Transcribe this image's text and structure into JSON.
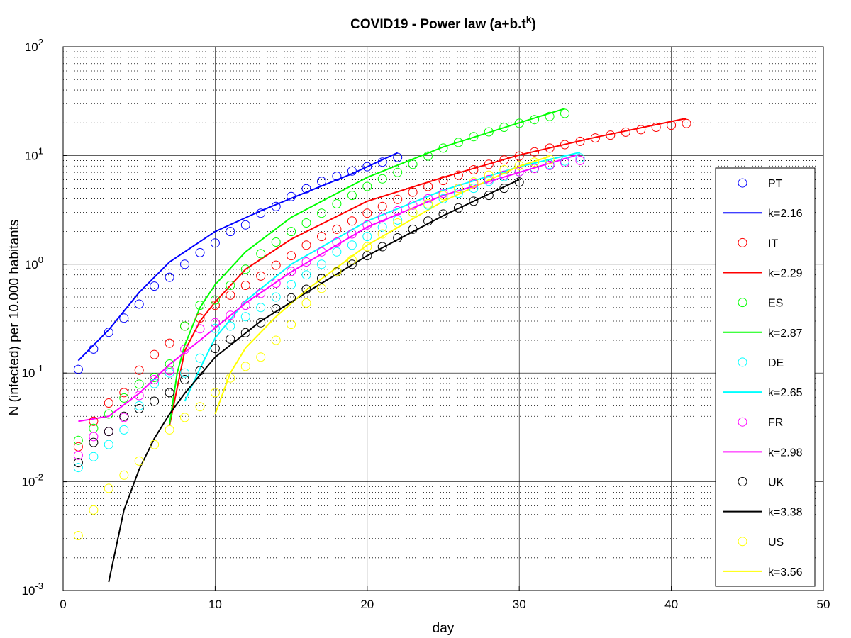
{
  "chart_data": {
    "type": "scatter",
    "title": "COVID19 - Power law (a+b.t",
    "title_sup": "k",
    "title_end": ")",
    "xlabel": "day",
    "ylabel": "N (infected) per 10.000 habitants",
    "xlim": [
      0,
      50
    ],
    "ylim": [
      0.001,
      100
    ],
    "yscale": "log",
    "grid": true,
    "minor_grid": true,
    "legend_position": "right",
    "x_ticks": [
      0,
      10,
      20,
      30,
      40,
      50
    ],
    "x_tick_labels": [
      "0",
      "10",
      "20",
      "30",
      "40",
      "50"
    ],
    "y_ticks": [
      0.001,
      0.01,
      0.1,
      1,
      10,
      100
    ],
    "y_tick_bases": [
      "10",
      "10",
      "10",
      "10",
      "10",
      "10"
    ],
    "y_tick_exps": [
      "-3",
      "-2",
      "-1",
      "0",
      "1",
      "2"
    ],
    "series": [
      {
        "name": "PT",
        "fit_label": "k=2.16",
        "color": "#0000ff",
        "k": 2.16,
        "points": [
          [
            1,
            0.108
          ],
          [
            2,
            0.166
          ],
          [
            3,
            0.237
          ],
          [
            4,
            0.32
          ],
          [
            5,
            0.43
          ],
          [
            6,
            0.63
          ],
          [
            7,
            0.76
          ],
          [
            8,
            1.0
          ],
          [
            9,
            1.28
          ],
          [
            10,
            1.57
          ],
          [
            11,
            2.0
          ],
          [
            12,
            2.3
          ],
          [
            13,
            2.95
          ],
          [
            14,
            3.4
          ],
          [
            15,
            4.2
          ],
          [
            16,
            4.95
          ],
          [
            17,
            5.8
          ],
          [
            18,
            6.45
          ],
          [
            19,
            7.2
          ],
          [
            20,
            7.9
          ],
          [
            21,
            8.7
          ],
          [
            22,
            9.6
          ]
        ]
      },
      {
        "name": "IT",
        "fit_label": "k=2.29",
        "color": "#ff0000",
        "k": 2.29,
        "points": [
          [
            1,
            0.021
          ],
          [
            2,
            0.036
          ],
          [
            3,
            0.053
          ],
          [
            4,
            0.066
          ],
          [
            5,
            0.106
          ],
          [
            6,
            0.148
          ],
          [
            7,
            0.188
          ],
          [
            8,
            0.27
          ],
          [
            9,
            0.32
          ],
          [
            10,
            0.42
          ],
          [
            11,
            0.52
          ],
          [
            12,
            0.64
          ],
          [
            13,
            0.78
          ],
          [
            14,
            0.98
          ],
          [
            15,
            1.2
          ],
          [
            16,
            1.5
          ],
          [
            17,
            1.8
          ],
          [
            18,
            2.1
          ],
          [
            19,
            2.5
          ],
          [
            20,
            2.95
          ],
          [
            21,
            3.4
          ],
          [
            22,
            3.95
          ],
          [
            23,
            4.6
          ],
          [
            24,
            5.2
          ],
          [
            25,
            5.9
          ],
          [
            26,
            6.6
          ],
          [
            27,
            7.4
          ],
          [
            28,
            8.3
          ],
          [
            29,
            9.1
          ],
          [
            30,
            9.9
          ],
          [
            31,
            10.8
          ],
          [
            32,
            11.7
          ],
          [
            33,
            12.6
          ],
          [
            34,
            13.5
          ],
          [
            35,
            14.5
          ],
          [
            36,
            15.4
          ],
          [
            37,
            16.4
          ],
          [
            38,
            17.3
          ],
          [
            39,
            18.2
          ],
          [
            40,
            19.0
          ],
          [
            41,
            19.7
          ]
        ]
      },
      {
        "name": "ES",
        "fit_label": "k=2.87",
        "color": "#00ff00",
        "k": 2.87,
        "points": [
          [
            1,
            0.024
          ],
          [
            2,
            0.031
          ],
          [
            3,
            0.042
          ],
          [
            4,
            0.059
          ],
          [
            5,
            0.079
          ],
          [
            6,
            0.091
          ],
          [
            7,
            0.121
          ],
          [
            8,
            0.27
          ],
          [
            9,
            0.42
          ],
          [
            10,
            0.47
          ],
          [
            11,
            0.64
          ],
          [
            12,
            0.9
          ],
          [
            13,
            1.25
          ],
          [
            14,
            1.6
          ],
          [
            15,
            2.0
          ],
          [
            16,
            2.4
          ],
          [
            17,
            2.95
          ],
          [
            18,
            3.6
          ],
          [
            19,
            4.3
          ],
          [
            20,
            5.2
          ],
          [
            21,
            6.1
          ],
          [
            22,
            7.0
          ],
          [
            23,
            8.3
          ],
          [
            24,
            9.9
          ],
          [
            25,
            11.7
          ],
          [
            26,
            13.2
          ],
          [
            27,
            14.9
          ],
          [
            28,
            16.5
          ],
          [
            29,
            18.2
          ],
          [
            30,
            19.8
          ],
          [
            31,
            21.4
          ],
          [
            32,
            22.9
          ],
          [
            33,
            24.4
          ]
        ]
      },
      {
        "name": "DE",
        "fit_label": "k=2.65",
        "color": "#00ffff",
        "k": 2.65,
        "points": [
          [
            1,
            0.0135
          ],
          [
            2,
            0.017
          ],
          [
            3,
            0.022
          ],
          [
            4,
            0.03
          ],
          [
            5,
            0.05
          ],
          [
            6,
            0.08
          ],
          [
            7,
            0.1
          ],
          [
            8,
            0.1
          ],
          [
            9,
            0.137
          ],
          [
            10,
            0.258
          ],
          [
            11,
            0.27
          ],
          [
            12,
            0.33
          ],
          [
            13,
            0.4
          ],
          [
            14,
            0.5
          ],
          [
            15,
            0.65
          ],
          [
            16,
            0.8
          ],
          [
            17,
            1.0
          ],
          [
            18,
            1.3
          ],
          [
            19,
            1.5
          ],
          [
            20,
            1.8
          ],
          [
            21,
            2.2
          ],
          [
            22,
            2.55
          ],
          [
            23,
            3.0
          ],
          [
            24,
            3.5
          ],
          [
            25,
            4.0
          ],
          [
            26,
            4.5
          ],
          [
            27,
            5.0
          ],
          [
            28,
            5.8
          ],
          [
            29,
            6.4
          ],
          [
            30,
            7.1
          ],
          [
            31,
            7.7
          ],
          [
            32,
            8.3
          ],
          [
            33,
            8.9
          ],
          [
            34,
            9.5
          ]
        ]
      },
      {
        "name": "FR",
        "fit_label": "k=2.98",
        "color": "#ff00ff",
        "k": 2.98,
        "points": [
          [
            1,
            0.0175
          ],
          [
            2,
            0.026
          ],
          [
            3,
            0.029
          ],
          [
            4,
            0.039
          ],
          [
            5,
            0.062
          ],
          [
            6,
            0.087
          ],
          [
            7,
            0.105
          ],
          [
            8,
            0.165
          ],
          [
            9,
            0.255
          ],
          [
            10,
            0.29
          ],
          [
            11,
            0.34
          ],
          [
            12,
            0.42
          ],
          [
            13,
            0.54
          ],
          [
            14,
            0.67
          ],
          [
            15,
            0.86
          ],
          [
            16,
            1.05
          ],
          [
            17,
            1.3
          ],
          [
            18,
            1.6
          ],
          [
            19,
            1.9
          ],
          [
            20,
            2.3
          ],
          [
            21,
            2.7
          ],
          [
            22,
            3.1
          ],
          [
            23,
            3.5
          ],
          [
            24,
            4.0
          ],
          [
            25,
            4.5
          ],
          [
            26,
            5.0
          ],
          [
            27,
            5.5
          ],
          [
            28,
            6.0
          ],
          [
            29,
            6.6
          ],
          [
            30,
            7.1
          ],
          [
            31,
            7.6
          ],
          [
            32,
            8.1
          ],
          [
            33,
            8.6
          ],
          [
            34,
            9.0
          ]
        ]
      },
      {
        "name": "UK",
        "fit_label": "k=3.38",
        "color": "#000000",
        "k": 3.38,
        "points": [
          [
            1,
            0.015
          ],
          [
            2,
            0.023
          ],
          [
            3,
            0.029
          ],
          [
            4,
            0.04
          ],
          [
            5,
            0.047
          ],
          [
            6,
            0.055
          ],
          [
            7,
            0.066
          ],
          [
            8,
            0.087
          ],
          [
            9,
            0.105
          ],
          [
            10,
            0.168
          ],
          [
            11,
            0.205
          ],
          [
            12,
            0.235
          ],
          [
            13,
            0.29
          ],
          [
            14,
            0.39
          ],
          [
            15,
            0.49
          ],
          [
            16,
            0.59
          ],
          [
            17,
            0.74
          ],
          [
            18,
            0.85
          ],
          [
            19,
            1.0
          ],
          [
            20,
            1.2
          ],
          [
            21,
            1.45
          ],
          [
            22,
            1.75
          ],
          [
            23,
            2.1
          ],
          [
            24,
            2.5
          ],
          [
            25,
            2.9
          ],
          [
            26,
            3.3
          ],
          [
            27,
            3.8
          ],
          [
            28,
            4.3
          ],
          [
            29,
            5.0
          ],
          [
            30,
            5.7
          ]
        ]
      },
      {
        "name": "US",
        "fit_label": "k=3.56",
        "color": "#ffff00",
        "k": 3.56,
        "points": [
          [
            1,
            0.0032
          ],
          [
            2,
            0.0055
          ],
          [
            3,
            0.0087
          ],
          [
            4,
            0.0115
          ],
          [
            5,
            0.0155
          ],
          [
            6,
            0.022
          ],
          [
            7,
            0.03
          ],
          [
            8,
            0.039
          ],
          [
            9,
            0.049
          ],
          [
            10,
            0.066
          ],
          [
            11,
            0.09
          ],
          [
            12,
            0.115
          ],
          [
            13,
            0.14
          ],
          [
            14,
            0.2
          ],
          [
            15,
            0.28
          ],
          [
            16,
            0.44
          ],
          [
            17,
            0.6
          ],
          [
            18,
            0.86
          ],
          [
            19,
            1.1
          ],
          [
            20,
            1.45
          ],
          [
            21,
            1.9
          ],
          [
            22,
            2.4
          ],
          [
            23,
            3.0
          ],
          [
            24,
            3.6
          ],
          [
            25,
            4.3
          ],
          [
            26,
            5.0
          ],
          [
            27,
            5.7
          ],
          [
            28,
            6.6
          ],
          [
            29,
            7.4
          ],
          [
            30,
            8.1
          ],
          [
            31,
            8.7
          ],
          [
            32,
            9.2
          ]
        ]
      }
    ],
    "fit_lines": [
      {
        "series": "PT",
        "points": [
          [
            1,
            0.13
          ],
          [
            3,
            0.25
          ],
          [
            5,
            0.55
          ],
          [
            7,
            1.05
          ],
          [
            10,
            2.0
          ],
          [
            13,
            3.1
          ],
          [
            16,
            4.6
          ],
          [
            19,
            6.8
          ],
          [
            22,
            10.6
          ]
        ]
      },
      {
        "series": "IT",
        "points": [
          [
            7,
            0.033
          ],
          [
            8,
            0.16
          ],
          [
            9,
            0.3
          ],
          [
            10,
            0.45
          ],
          [
            12,
            0.9
          ],
          [
            15,
            1.7
          ],
          [
            20,
            3.8
          ],
          [
            25,
            6.3
          ],
          [
            30,
            10.1
          ],
          [
            35,
            14.7
          ],
          [
            41,
            22.0
          ]
        ]
      },
      {
        "series": "ES",
        "points": [
          [
            7,
            0.034
          ],
          [
            7.5,
            0.1
          ],
          [
            8,
            0.18
          ],
          [
            9,
            0.4
          ],
          [
            10,
            0.65
          ],
          [
            12,
            1.3
          ],
          [
            15,
            2.7
          ],
          [
            20,
            6.3
          ],
          [
            25,
            12.0
          ],
          [
            30,
            20.0
          ],
          [
            33,
            27.0
          ]
        ]
      },
      {
        "series": "DE",
        "points": [
          [
            8,
            0.055
          ],
          [
            9,
            0.11
          ],
          [
            10,
            0.21
          ],
          [
            12,
            0.46
          ],
          [
            15,
            1.0
          ],
          [
            20,
            2.5
          ],
          [
            25,
            4.8
          ],
          [
            30,
            7.9
          ],
          [
            34,
            10.7
          ]
        ]
      },
      {
        "series": "FR",
        "points": [
          [
            1,
            0.036
          ],
          [
            3,
            0.04
          ],
          [
            5,
            0.065
          ],
          [
            7,
            0.12
          ],
          [
            9,
            0.2
          ],
          [
            12,
            0.44
          ],
          [
            15,
            0.85
          ],
          [
            20,
            2.2
          ],
          [
            25,
            4.3
          ],
          [
            30,
            7.0
          ],
          [
            34,
            10.3
          ]
        ]
      },
      {
        "series": "UK",
        "points": [
          [
            3,
            0.0012
          ],
          [
            4,
            0.0055
          ],
          [
            5,
            0.013
          ],
          [
            6,
            0.025
          ],
          [
            7,
            0.042
          ],
          [
            8,
            0.065
          ],
          [
            10,
            0.14
          ],
          [
            13,
            0.3
          ],
          [
            16,
            0.55
          ],
          [
            20,
            1.2
          ],
          [
            25,
            2.8
          ],
          [
            30,
            6.0
          ]
        ]
      },
      {
        "series": "US",
        "points": [
          [
            10,
            0.042
          ],
          [
            11,
            0.1
          ],
          [
            12,
            0.17
          ],
          [
            14,
            0.33
          ],
          [
            16,
            0.58
          ],
          [
            20,
            1.5
          ],
          [
            25,
            3.8
          ],
          [
            30,
            8.0
          ],
          [
            32,
            9.8
          ]
        ]
      }
    ]
  }
}
